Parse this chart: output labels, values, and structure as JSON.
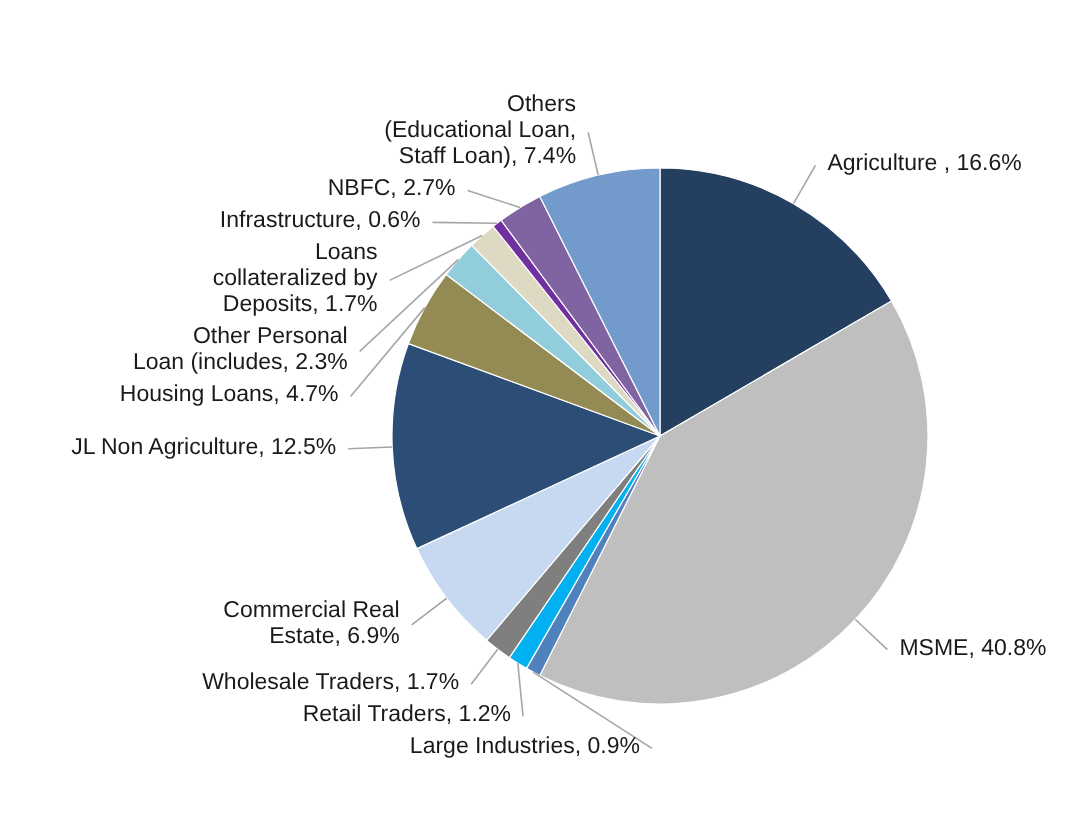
{
  "chart_data": {
    "type": "pie",
    "categories": [
      "Agriculture ",
      "MSME",
      "Large Industries",
      "Retail Traders",
      "Wholesale Traders",
      "Commercial Real Estate",
      "JL Non Agriculture",
      "Housing Loans",
      "Other Personal Loan (includes",
      "Loans collateralized by Deposits",
      "Infrastructure",
      "NBFC",
      "Others (Educational Loan, Staff Loan)"
    ],
    "values": [
      16.6,
      40.8,
      0.9,
      1.2,
      1.7,
      6.9,
      12.5,
      4.7,
      2.3,
      1.7,
      0.6,
      2.7,
      7.4
    ],
    "colors": [
      "#243f60",
      "#bfbfbf",
      "#4f81bd",
      "#00b0f0",
      "#7f7f7f",
      "#c6d9f1",
      "#2c4d75",
      "#948a54",
      "#92cddc",
      "#ddd9c3",
      "#7030a0",
      "#8064a2",
      "#729acb"
    ],
    "value_labels": [
      "16.6%",
      "40.8%",
      "0.9%",
      "1.2%",
      "1.7%",
      "6.9%",
      "12.5%",
      "4.7%",
      "2.3%",
      "1.7%",
      "0.6%",
      "2.7%",
      "7.4%"
    ]
  }
}
